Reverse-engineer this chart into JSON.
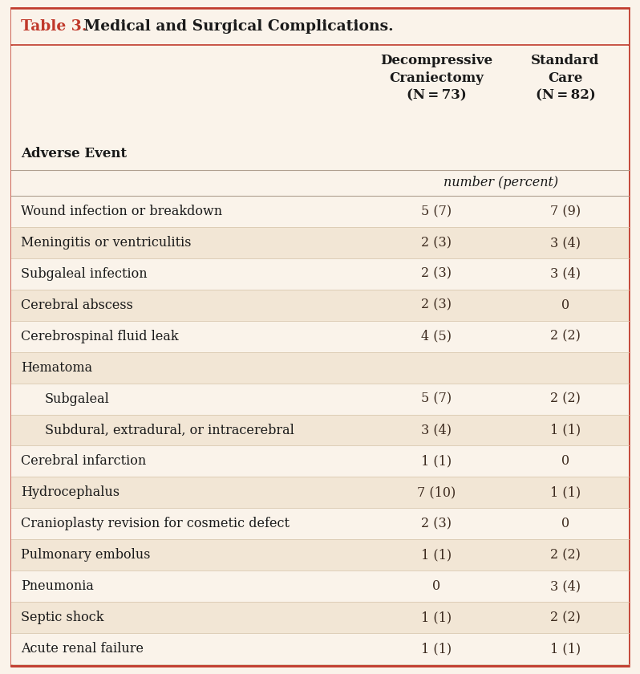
{
  "title_red": "Table 3.",
  "title_black": " Medical and Surgical Complications.",
  "col_header1": "Decompressive\nCraniectomy\n(N = 73)",
  "col_header2": "Standard\nCare\n(N = 82)",
  "col_header0": "Adverse Event",
  "subheader": "number (percent)",
  "rows": [
    {
      "label": "Wound infection or breakdown",
      "indent": false,
      "col1": "5 (7)",
      "col2": "7 (9)"
    },
    {
      "label": "Meningitis or ventriculitis",
      "indent": false,
      "col1": "2 (3)",
      "col2": "3 (4)"
    },
    {
      "label": "Subgaleal infection",
      "indent": false,
      "col1": "2 (3)",
      "col2": "3 (4)"
    },
    {
      "label": "Cerebral abscess",
      "indent": false,
      "col1": "2 (3)",
      "col2": "0"
    },
    {
      "label": "Cerebrospinal fluid leak",
      "indent": false,
      "col1": "4 (5)",
      "col2": "2 (2)"
    },
    {
      "label": "Hematoma",
      "indent": false,
      "col1": "",
      "col2": ""
    },
    {
      "label": "Subgaleal",
      "indent": true,
      "col1": "5 (7)",
      "col2": "2 (2)"
    },
    {
      "label": "Subdural, extradural, or intracerebral",
      "indent": true,
      "col1": "3 (4)",
      "col2": "1 (1)"
    },
    {
      "label": "Cerebral infarction",
      "indent": false,
      "col1": "1 (1)",
      "col2": "0"
    },
    {
      "label": "Hydrocephalus",
      "indent": false,
      "col1": "7 (10)",
      "col2": "1 (1)"
    },
    {
      "label": "Cranioplasty revision for cosmetic defect",
      "indent": false,
      "col1": "2 (3)",
      "col2": "0"
    },
    {
      "label": "Pulmonary embolus",
      "indent": false,
      "col1": "1 (1)",
      "col2": "2 (2)"
    },
    {
      "label": "Pneumonia",
      "indent": false,
      "col1": "0",
      "col2": "3 (4)"
    },
    {
      "label": "Septic shock",
      "indent": false,
      "col1": "1 (1)",
      "col2": "2 (2)"
    },
    {
      "label": "Acute renal failure",
      "indent": false,
      "col1": "1 (1)",
      "col2": "1 (1)"
    }
  ],
  "bg_color": "#faf3ea",
  "title_bar_bg": "#f5ebe0",
  "title_color": "#c0392b",
  "border_color": "#c0392b",
  "text_color": "#1a1a1a",
  "data_color": "#3d2b1f",
  "row_line_color": "#d9c9b0",
  "stripe_even": "#faf3ea",
  "stripe_odd": "#f2e6d5",
  "header_line_color": "#b0a090"
}
